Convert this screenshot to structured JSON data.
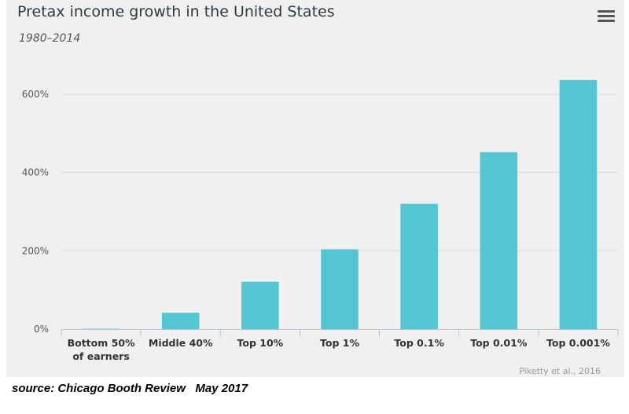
{
  "chart_data": {
    "type": "bar",
    "title": "Pretax income growth in the United States",
    "subtitle": "1980–2014",
    "categories": [
      [
        "Bottom 50%",
        "of earners"
      ],
      [
        "Middle 40%"
      ],
      [
        "Top 10%"
      ],
      [
        "Top 1%"
      ],
      [
        "Top 0.1%"
      ],
      [
        "Top 0.01%"
      ],
      [
        "Top 0.001%"
      ]
    ],
    "values": [
      1,
      42,
      121,
      204,
      320,
      452,
      636
    ],
    "ylim": [
      0,
      700
    ],
    "yticks": [
      0,
      200,
      400,
      600
    ],
    "ytick_labels": [
      "0%",
      "200%",
      "400%",
      "600%"
    ],
    "xlabel": "",
    "ylabel": "",
    "bar_color": "#55c5d1",
    "credits": "Piketty et al., 2016"
  },
  "source_note": "source: Chicago Booth Review   May 2017",
  "menu": {
    "icon": "hamburger-menu-icon"
  }
}
